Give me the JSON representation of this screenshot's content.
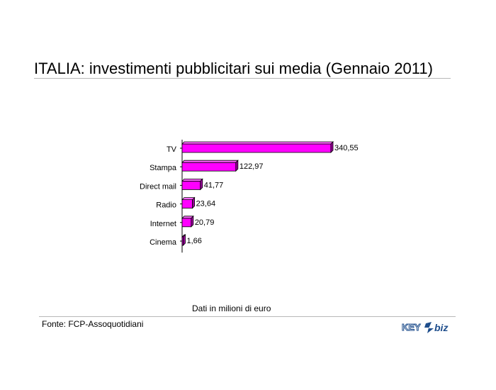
{
  "header": {
    "title": "ITALIA: investimenti pubblicitari sui media (Gennaio 2011)"
  },
  "chart_data": {
    "type": "bar",
    "orientation": "horizontal",
    "style": "3d",
    "categories": [
      "TV",
      "Stampa",
      "Direct mail",
      "Radio",
      "Internet",
      "Cinema"
    ],
    "values": [
      340.55,
      122.97,
      41.77,
      23.64,
      20.79,
      1.66
    ],
    "value_labels": [
      "340,55",
      "122,97",
      "41,77",
      "23,64",
      "20,79",
      "1,66"
    ],
    "xlim": [
      0,
      340.55
    ],
    "grid": false,
    "colors": {
      "bar_front": "#ff00ff",
      "bar_top": "#ff66ff",
      "bar_side": "#990099",
      "outline": "#000000"
    }
  },
  "footer": {
    "caption": "Dati in milioni di euro",
    "source": "Fonte: FCP-Assoquotidiani",
    "logo": {
      "text_left": "KEY",
      "text_right": "biz",
      "color": "#1f4e8c"
    }
  }
}
